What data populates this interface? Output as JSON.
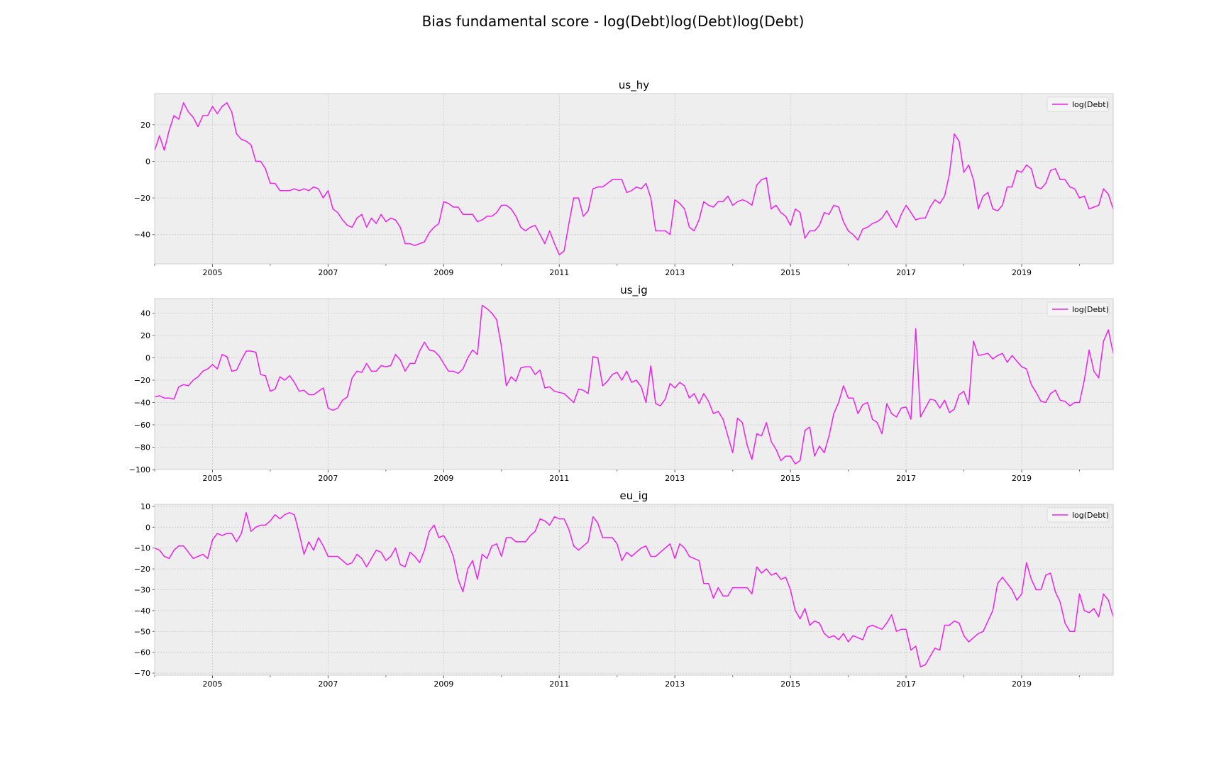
{
  "title": "Bias fundamental score - log(Debt)log(Debt)log(Debt)",
  "chart_data": [
    {
      "type": "line",
      "title": "us_hy",
      "x_start": "2004-01",
      "x_end": "2020-09",
      "xlim": [
        "2004-01",
        "2020-08"
      ],
      "ylim": [
        -56,
        37
      ],
      "yticks": [
        20,
        0,
        -20,
        -40
      ],
      "xticks": [
        "2005",
        "2007",
        "2009",
        "2011",
        "2013",
        "2015",
        "2017",
        "2019"
      ],
      "grid": true,
      "legend_position": "top-right",
      "series": [
        {
          "name": "log(Debt)",
          "color": "#ee22ee",
          "values": [
            6,
            14,
            6,
            17,
            25,
            23,
            32,
            27,
            24,
            19,
            25,
            25,
            30,
            26,
            30,
            32,
            27,
            15,
            12,
            11,
            9,
            0,
            0,
            -4,
            -12,
            -12,
            -16,
            -16,
            -16,
            -15,
            -16,
            -15,
            -16,
            -14,
            -15,
            -20,
            -16,
            -26,
            -28,
            -32,
            -35,
            -36,
            -31,
            -29,
            -36,
            -31,
            -34,
            -29,
            -33,
            -31,
            -32,
            -36,
            -45,
            -45,
            -46,
            -45,
            -44,
            -39,
            -36,
            -34,
            -22,
            -23,
            -25,
            -25,
            -29,
            -29,
            -29,
            -33,
            -32,
            -30,
            -30,
            -28,
            -24,
            -24,
            -26,
            -30,
            -36,
            -38,
            -36,
            -35,
            -40,
            -45,
            -38,
            -45,
            -51,
            -49,
            -34,
            -20,
            -20,
            -30,
            -27,
            -15,
            -14,
            -14,
            -12,
            -10,
            -10,
            -10,
            -17,
            -16,
            -14,
            -15,
            -12,
            -20,
            -38,
            -38,
            -38,
            -40,
            -21,
            -23,
            -26,
            -36,
            -38,
            -32,
            -22,
            -24,
            -25,
            -22,
            -22,
            -19,
            -24,
            -22,
            -21,
            -22,
            -24,
            -13,
            -10,
            -9,
            -26,
            -24,
            -28,
            -30,
            -35,
            -26,
            -28,
            -42,
            -38,
            -38,
            -35,
            -28,
            -29,
            -24,
            -25,
            -33,
            -38,
            -40,
            -43,
            -37,
            -36,
            -34,
            -33,
            -31,
            -27,
            -32,
            -36,
            -29,
            -24,
            -28,
            -32,
            -31,
            -31,
            -25,
            -21,
            -23,
            -19,
            -7,
            15,
            11,
            -6,
            -2,
            -10,
            -26,
            -19,
            -17,
            -26,
            -27,
            -24,
            -14,
            -14,
            -5,
            -6,
            -2,
            -4,
            -14,
            -15,
            -12,
            -5,
            -4,
            -10,
            -10,
            -14,
            -15,
            -20,
            -19,
            -26,
            -25,
            -24,
            -15,
            -18,
            -26
          ]
        }
      ]
    },
    {
      "type": "line",
      "title": "us_ig",
      "x_start": "2004-01",
      "x_end": "2020-09",
      "xlim": [
        "2004-01",
        "2020-08"
      ],
      "ylim": [
        -100,
        53
      ],
      "yticks": [
        40,
        20,
        0,
        -20,
        -40,
        -60,
        -80,
        -100
      ],
      "xticks": [
        "2005",
        "2007",
        "2009",
        "2011",
        "2013",
        "2015",
        "2017",
        "2019"
      ],
      "grid": true,
      "legend_position": "top-right",
      "series": [
        {
          "name": "log(Debt)",
          "color": "#ee22ee",
          "values": [
            -35,
            -34,
            -36,
            -36,
            -37,
            -26,
            -24,
            -25,
            -20,
            -17,
            -12,
            -10,
            -6,
            -10,
            3,
            1,
            -12,
            -11,
            -2,
            6,
            6,
            5,
            -15,
            -16,
            -30,
            -28,
            -17,
            -20,
            -16,
            -22,
            -30,
            -29,
            -33,
            -33,
            -30,
            -27,
            -45,
            -47,
            -45,
            -38,
            -35,
            -18,
            -12,
            -13,
            -5,
            -12,
            -12,
            -7,
            -8,
            -7,
            3,
            -2,
            -12,
            -5,
            -5,
            6,
            14,
            7,
            6,
            2,
            -5,
            -12,
            -12,
            -14,
            -10,
            0,
            7,
            3,
            47,
            44,
            40,
            34,
            10,
            -25,
            -17,
            -21,
            -9,
            -8,
            -8,
            -15,
            -11,
            -27,
            -26,
            -30,
            -31,
            -32,
            -36,
            -40,
            -28,
            -29,
            -32,
            1,
            0,
            -25,
            -21,
            -15,
            -13,
            -20,
            -12,
            -22,
            -20,
            -26,
            -40,
            -7,
            -41,
            -43,
            -37,
            -23,
            -27,
            -22,
            -25,
            -36,
            -32,
            -41,
            -32,
            -39,
            -50,
            -48,
            -55,
            -70,
            -85,
            -54,
            -58,
            -78,
            -91,
            -68,
            -70,
            -58,
            -75,
            -82,
            -92,
            -88,
            -88,
            -95,
            -92,
            -65,
            -62,
            -88,
            -79,
            -85,
            -70,
            -50,
            -40,
            -25,
            -36,
            -36,
            -50,
            -42,
            -40,
            -55,
            -58,
            -68,
            -41,
            -50,
            -53,
            -45,
            -44,
            -55,
            26,
            -53,
            -45,
            -37,
            -38,
            -45,
            -38,
            -49,
            -46,
            -33,
            -30,
            -42,
            15,
            2,
            3,
            4,
            -1,
            2,
            4,
            -4,
            2,
            -3,
            -8,
            -10,
            -24,
            -31,
            -39,
            -40,
            -32,
            -29,
            -38,
            -39,
            -43,
            -40,
            -40,
            -20,
            7,
            -12,
            -18,
            15,
            25,
            4
          ]
        }
      ]
    },
    {
      "type": "line",
      "title": "eu_ig",
      "x_start": "2004-01",
      "x_end": "2020-09",
      "xlim": [
        "2004-01",
        "2020-08"
      ],
      "ylim": [
        -71,
        11
      ],
      "yticks": [
        10,
        0,
        -10,
        -20,
        -30,
        -40,
        -50,
        -60,
        -70
      ],
      "xticks": [
        "2005",
        "2007",
        "2009",
        "2011",
        "2013",
        "2015",
        "2017",
        "2019"
      ],
      "grid": true,
      "legend_position": "top-right",
      "series": [
        {
          "name": "log(Debt)",
          "color": "#ee22ee",
          "values": [
            -10,
            -11,
            -14,
            -15,
            -11,
            -9,
            -9,
            -12,
            -15,
            -14,
            -13,
            -15,
            -6,
            -3,
            -4,
            -3,
            -3,
            -7,
            -3,
            7,
            -2,
            0,
            1,
            1,
            3,
            6,
            4,
            6,
            7,
            6,
            -3,
            -13,
            -7,
            -11,
            -5,
            -9,
            -14,
            -14,
            -14,
            -16,
            -18,
            -17,
            -13,
            -15,
            -19,
            -15,
            -11,
            -12,
            -16,
            -14,
            -10,
            -18,
            -19,
            -12,
            -14,
            -17,
            -11,
            -2,
            1,
            -5,
            -4,
            -8,
            -14,
            -25,
            -31,
            -20,
            -16,
            -25,
            -13,
            -15,
            -9,
            -8,
            -14,
            -5,
            -5,
            -7,
            -7,
            -7,
            -4,
            -2,
            4,
            3,
            1,
            5,
            4,
            4,
            -1,
            -9,
            -11,
            -9,
            -7,
            5,
            2,
            -5,
            -5,
            -5,
            -8,
            -16,
            -12,
            -14,
            -12,
            -10,
            -9,
            -14,
            -14,
            -12,
            -10,
            -8,
            -15,
            -8,
            -10,
            -14,
            -15,
            -16,
            -27,
            -27,
            -34,
            -29,
            -33,
            -33,
            -29,
            -29,
            -29,
            -29,
            -32,
            -19,
            -22,
            -20,
            -23,
            -22,
            -25,
            -24,
            -30,
            -40,
            -44,
            -39,
            -47,
            -45,
            -46,
            -51,
            -53,
            -52,
            -54,
            -51,
            -55,
            -52,
            -53,
            -54,
            -48,
            -47,
            -48,
            -49,
            -46,
            -42,
            -50,
            -49,
            -49,
            -59,
            -57,
            -67,
            -66,
            -62,
            -58,
            -59,
            -47,
            -47,
            -45,
            -46,
            -52,
            -55,
            -53,
            -51,
            -50,
            -45,
            -40,
            -27,
            -24,
            -27,
            -30,
            -35,
            -32,
            -17,
            -25,
            -30,
            -30,
            -23,
            -22,
            -31,
            -36,
            -46,
            -50,
            -50,
            -32,
            -40,
            -41,
            -39,
            -43,
            -32,
            -35,
            -43
          ]
        }
      ]
    }
  ]
}
